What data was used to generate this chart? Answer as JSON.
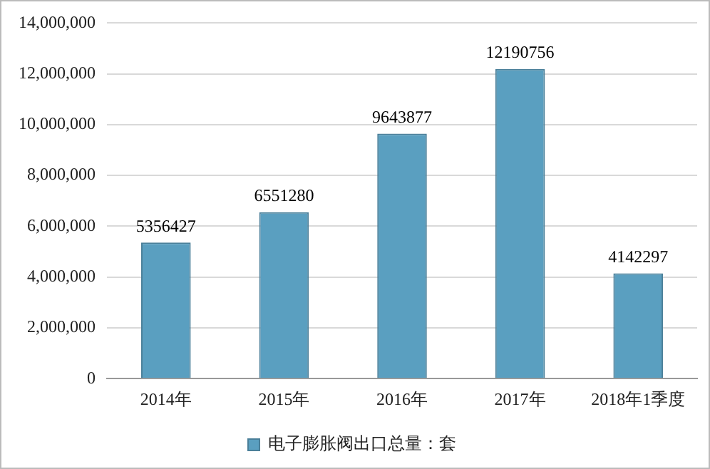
{
  "chart_data": {
    "type": "bar",
    "categories": [
      "2014年",
      "2015年",
      "2016年",
      "2017年",
      "2018年1季度"
    ],
    "series": [
      {
        "name": "电子膨胀阀出口总量：套",
        "color": "#5a9fc0",
        "values": [
          5356427,
          6551280,
          9643877,
          12190756,
          4142297
        ]
      }
    ],
    "ylim": [
      0,
      14000000
    ],
    "yticks": [
      {
        "value": 0,
        "label": "0"
      },
      {
        "value": 2000000,
        "label": "2,000,000"
      },
      {
        "value": 4000000,
        "label": "4,000,000"
      },
      {
        "value": 6000000,
        "label": "6,000,000"
      },
      {
        "value": 8000000,
        "label": "8,000,000"
      },
      {
        "value": 10000000,
        "label": "10,000,000"
      },
      {
        "value": 12000000,
        "label": "12,000,000"
      },
      {
        "value": 14000000,
        "label": "14,000,000"
      }
    ],
    "grid": "y",
    "legend": "bottom",
    "data_labels": true
  }
}
